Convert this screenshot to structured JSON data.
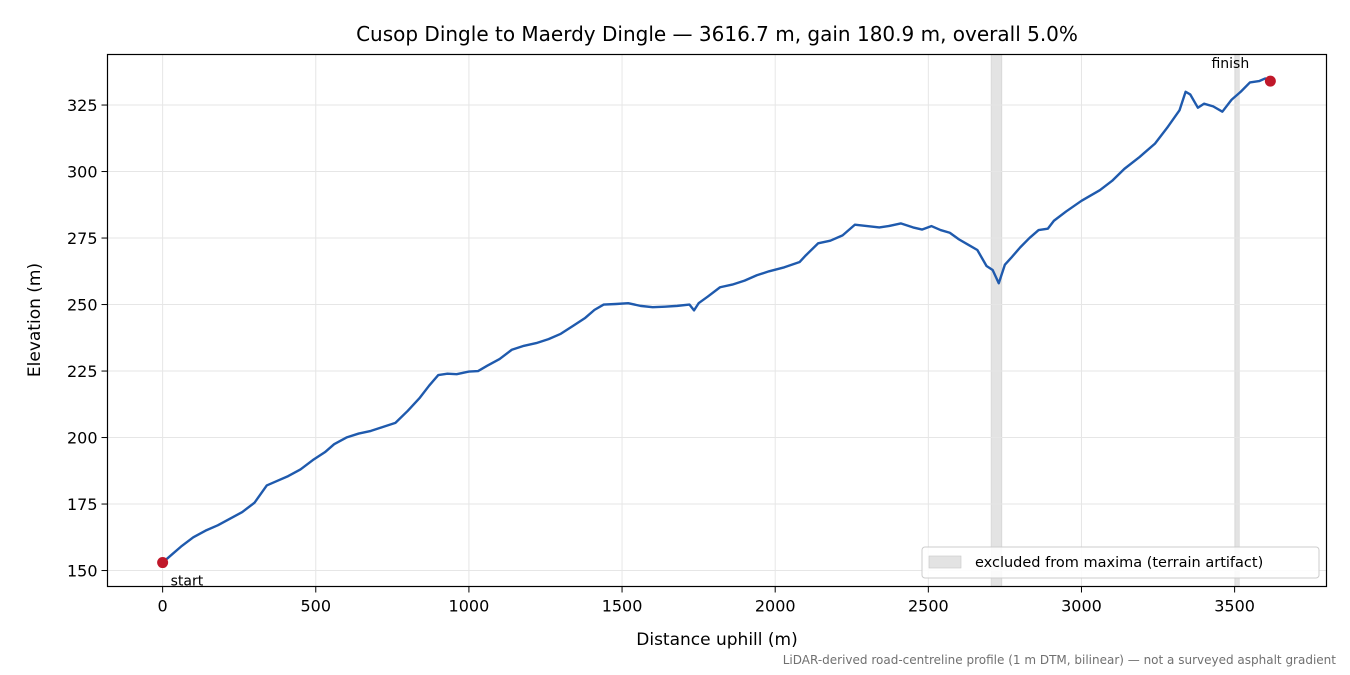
{
  "chart_data": {
    "type": "line",
    "title": "Cusop Dingle to Maerdy Dingle — 3616.7 m, gain 180.9 m, overall 5.0%",
    "xlabel": "Distance uphill (m)",
    "ylabel": "Elevation (m)",
    "xlim": [
      -180,
      3800
    ],
    "ylim": [
      144,
      344
    ],
    "xticks": [
      0,
      500,
      1000,
      1500,
      2000,
      2500,
      3000,
      3500
    ],
    "yticks": [
      150,
      175,
      200,
      225,
      250,
      275,
      300,
      325
    ],
    "grid": true,
    "line_color": "#1f5aad",
    "marker_color": "#c0182a",
    "series": [
      {
        "points": [
          [
            0,
            153
          ],
          [
            30,
            156
          ],
          [
            60,
            159
          ],
          [
            100,
            162.5
          ],
          [
            140,
            165
          ],
          [
            180,
            167
          ],
          [
            220,
            169.5
          ],
          [
            260,
            172
          ],
          [
            300,
            175.5
          ],
          [
            340,
            182
          ],
          [
            370,
            183.5
          ],
          [
            410,
            185.5
          ],
          [
            450,
            188
          ],
          [
            490,
            191.5
          ],
          [
            530,
            194.5
          ],
          [
            560,
            197.5
          ],
          [
            600,
            200
          ],
          [
            640,
            201.5
          ],
          [
            680,
            202.5
          ],
          [
            720,
            204
          ],
          [
            760,
            205.5
          ],
          [
            800,
            210
          ],
          [
            840,
            215
          ],
          [
            870,
            219.5
          ],
          [
            900,
            223.5
          ],
          [
            930,
            224
          ],
          [
            960,
            223.8
          ],
          [
            1000,
            224.8
          ],
          [
            1030,
            225
          ],
          [
            1060,
            227
          ],
          [
            1100,
            229.5
          ],
          [
            1140,
            233
          ],
          [
            1180,
            234.5
          ],
          [
            1220,
            235.5
          ],
          [
            1260,
            237
          ],
          [
            1300,
            239
          ],
          [
            1340,
            242
          ],
          [
            1380,
            245
          ],
          [
            1410,
            248
          ],
          [
            1440,
            250
          ],
          [
            1480,
            250.2
          ],
          [
            1520,
            250.5
          ],
          [
            1560,
            249.5
          ],
          [
            1600,
            249
          ],
          [
            1640,
            249.2
          ],
          [
            1680,
            249.5
          ],
          [
            1720,
            250
          ],
          [
            1735,
            247.8
          ],
          [
            1750,
            250.5
          ],
          [
            1780,
            253
          ],
          [
            1820,
            256.5
          ],
          [
            1860,
            257.5
          ],
          [
            1900,
            259
          ],
          [
            1940,
            261
          ],
          [
            1980,
            262.5
          ],
          [
            2030,
            264
          ],
          [
            2080,
            266
          ],
          [
            2100,
            268.5
          ],
          [
            2140,
            273
          ],
          [
            2180,
            274
          ],
          [
            2220,
            276
          ],
          [
            2260,
            280
          ],
          [
            2300,
            279.5
          ],
          [
            2340,
            279
          ],
          [
            2370,
            279.5
          ],
          [
            2410,
            280.5
          ],
          [
            2450,
            279
          ],
          [
            2480,
            278.2
          ],
          [
            2510,
            279.5
          ],
          [
            2540,
            278
          ],
          [
            2570,
            277
          ],
          [
            2600,
            274.5
          ],
          [
            2630,
            272.5
          ],
          [
            2660,
            270.5
          ],
          [
            2690,
            264.5
          ],
          [
            2710,
            263
          ],
          [
            2730,
            258
          ],
          [
            2750,
            265
          ],
          [
            2770,
            267.5
          ],
          [
            2800,
            271.5
          ],
          [
            2830,
            275
          ],
          [
            2860,
            278
          ],
          [
            2890,
            278.5
          ],
          [
            2910,
            281.5
          ],
          [
            2950,
            285
          ],
          [
            3000,
            289
          ],
          [
            3060,
            293
          ],
          [
            3100,
            296.5
          ],
          [
            3140,
            301
          ],
          [
            3190,
            305.5
          ],
          [
            3240,
            310.5
          ],
          [
            3280,
            316.5
          ],
          [
            3320,
            323
          ],
          [
            3340,
            330
          ],
          [
            3355,
            329
          ],
          [
            3380,
            324
          ],
          [
            3400,
            325.5
          ],
          [
            3430,
            324.5
          ],
          [
            3460,
            322.5
          ],
          [
            3490,
            327
          ],
          [
            3520,
            330
          ],
          [
            3550,
            333.5
          ],
          [
            3580,
            334
          ],
          [
            3600,
            335
          ],
          [
            3616.7,
            334
          ]
        ]
      }
    ],
    "shaded_regions": [
      {
        "x": [
          2705,
          2740
        ],
        "color": "#e3e3e3"
      },
      {
        "x": [
          3503,
          3515
        ],
        "color": "#e3e3e3"
      }
    ],
    "annotations": [
      {
        "text": "start",
        "x": 0,
        "y": 153
      },
      {
        "text": "finish",
        "x": 3616.7,
        "y": 334
      }
    ],
    "legend": {
      "label": "excluded from maxima (terrain artifact)",
      "placement": "lower-right"
    },
    "footnote": "LiDAR-derived road-centreline profile (1 m DTM, bilinear) — not a surveyed asphalt gradient"
  }
}
